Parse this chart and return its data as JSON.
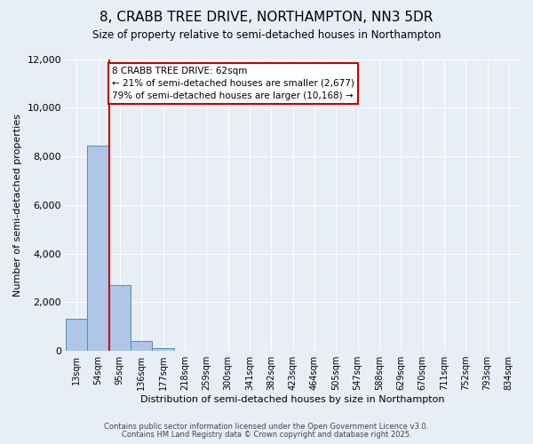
{
  "title": "8, CRABB TREE DRIVE, NORTHAMPTON, NN3 5DR",
  "subtitle": "Size of property relative to semi-detached houses in Northampton",
  "xlabel": "Distribution of semi-detached houses by size in Northampton",
  "ylabel_text": "Number of semi-detached properties",
  "bin_labels": [
    "13sqm",
    "54sqm",
    "95sqm",
    "136sqm",
    "177sqm",
    "218sqm",
    "259sqm",
    "300sqm",
    "341sqm",
    "382sqm",
    "423sqm",
    "464sqm",
    "505sqm",
    "547sqm",
    "588sqm",
    "629sqm",
    "670sqm",
    "711sqm",
    "752sqm",
    "793sqm",
    "834sqm"
  ],
  "bar_values": [
    1300,
    8450,
    2700,
    390,
    130,
    0,
    0,
    0,
    0,
    0,
    0,
    0,
    0,
    0,
    0,
    0,
    0,
    0,
    0,
    0,
    0
  ],
  "bar_color": "#aec6e8",
  "bar_edge_color": "#5a8ab0",
  "ylim": [
    0,
    12000
  ],
  "yticks": [
    0,
    2000,
    4000,
    6000,
    8000,
    10000,
    12000
  ],
  "property_line_color": "#cc0000",
  "property_line_x": 1.5,
  "annotation_text": "8 CRABB TREE DRIVE: 62sqm\n← 21% of semi-detached houses are smaller (2,677)\n79% of semi-detached houses are larger (10,168) →",
  "annotation_box_color": "#cc0000",
  "background_color": "#e8eef5",
  "footer_line1": "Contains HM Land Registry data © Crown copyright and database right 2025.",
  "footer_line2": "Contains public sector information licensed under the Open Government Licence v3.0."
}
